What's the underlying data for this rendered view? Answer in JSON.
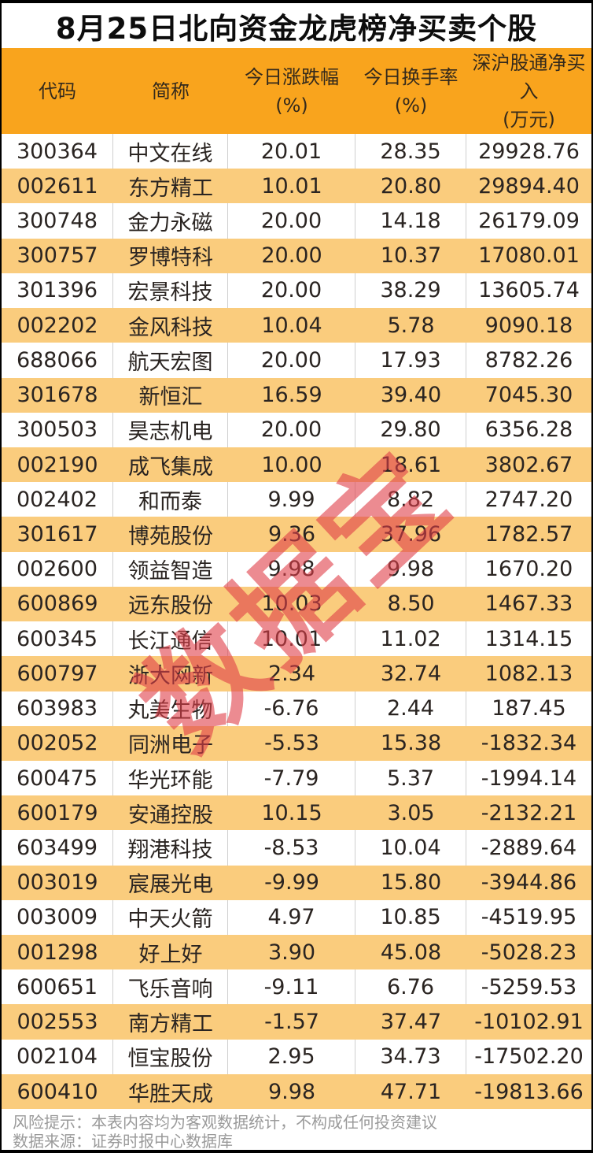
{
  "watermark_text": "数据宝",
  "chart_data": {
    "type": "table",
    "title": "8月25日北向资金龙虎榜净买卖个股",
    "columns": [
      {
        "label": "代码",
        "sub": ""
      },
      {
        "label": "简称",
        "sub": ""
      },
      {
        "label": "今日涨跌幅",
        "sub": "(%)"
      },
      {
        "label": "今日换手率",
        "sub": "(%)"
      },
      {
        "label": "深沪股通净买入",
        "sub": "(万元)"
      }
    ],
    "rows": [
      [
        "300364",
        "中文在线",
        "20.01",
        "28.35",
        "29928.76"
      ],
      [
        "002611",
        "东方精工",
        "10.01",
        "20.80",
        "29894.40"
      ],
      [
        "300748",
        "金力永磁",
        "20.00",
        "14.18",
        "26179.09"
      ],
      [
        "300757",
        "罗博特科",
        "20.00",
        "10.37",
        "17080.01"
      ],
      [
        "301396",
        "宏景科技",
        "20.00",
        "38.29",
        "13605.74"
      ],
      [
        "002202",
        "金风科技",
        "10.04",
        "5.78",
        "9090.18"
      ],
      [
        "688066",
        "航天宏图",
        "20.00",
        "17.93",
        "8782.26"
      ],
      [
        "301678",
        "新恒汇",
        "16.59",
        "39.40",
        "7045.30"
      ],
      [
        "300503",
        "昊志机电",
        "20.00",
        "29.80",
        "6356.28"
      ],
      [
        "002190",
        "成飞集成",
        "10.00",
        "18.61",
        "3802.67"
      ],
      [
        "002402",
        "和而泰",
        "9.99",
        "8.82",
        "2747.20"
      ],
      [
        "301617",
        "博苑股份",
        "9.36",
        "37.96",
        "1782.57"
      ],
      [
        "002600",
        "领益智造",
        "9.98",
        "9.98",
        "1670.20"
      ],
      [
        "600869",
        "远东股份",
        "10.03",
        "8.50",
        "1467.33"
      ],
      [
        "600345",
        "长江通信",
        "10.01",
        "11.02",
        "1314.15"
      ],
      [
        "600797",
        "浙大网新",
        "2.34",
        "32.74",
        "1082.13"
      ],
      [
        "603983",
        "丸美生物",
        "-6.76",
        "2.44",
        "187.45"
      ],
      [
        "002052",
        "同洲电子",
        "-5.53",
        "15.38",
        "-1832.34"
      ],
      [
        "600475",
        "华光环能",
        "-7.79",
        "5.37",
        "-1994.14"
      ],
      [
        "600179",
        "安通控股",
        "10.15",
        "3.05",
        "-2132.21"
      ],
      [
        "603499",
        "翔港科技",
        "-8.53",
        "10.04",
        "-2889.64"
      ],
      [
        "003019",
        "宸展光电",
        "-9.99",
        "15.80",
        "-3944.86"
      ],
      [
        "003009",
        "中天火箭",
        "4.97",
        "10.85",
        "-4519.95"
      ],
      [
        "001298",
        "好上好",
        "3.90",
        "45.08",
        "-5028.23"
      ],
      [
        "600651",
        "飞乐音响",
        "-9.11",
        "6.76",
        "-5259.53"
      ],
      [
        "002553",
        "南方精工",
        "-1.57",
        "37.47",
        "-10102.91"
      ],
      [
        "002104",
        "恒宝股份",
        "2.95",
        "34.73",
        "-17502.20"
      ],
      [
        "600410",
        "华胜天成",
        "9.98",
        "47.71",
        "-19813.66"
      ]
    ],
    "layout": {
      "row_striping": [
        "#FFFFFF",
        "#FACC7D"
      ],
      "header_bg": "#F9A41D",
      "grid": "vertical-separators-on-white-rows-only"
    }
  },
  "footer": {
    "risk_note": "风险提示：本表内容均为客观数据统计，不构成任何投资建议",
    "data_source": "数据来源：证券时报中心数据库"
  },
  "colors": {
    "header_bg": "#F9A41D",
    "row_alt_bg": "#FACC7D",
    "header_text": "#33291C",
    "cell_text": "#2A2421",
    "title_text": "#0D0D0D",
    "footer_text": "#9A9A9A",
    "watermark": "#E03E48",
    "separator": "#CFCFCF",
    "border": "#000000"
  }
}
